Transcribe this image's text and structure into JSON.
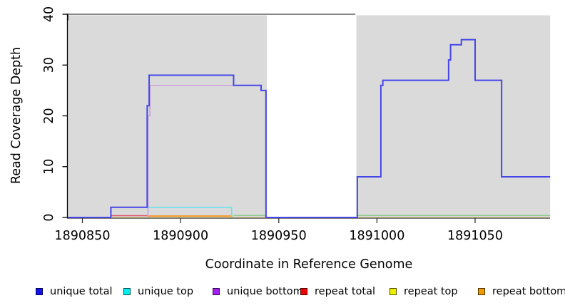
{
  "chart_data": {
    "type": "line",
    "title": "",
    "xlabel": "Coordinate in Reference Genome",
    "ylabel": "Read Coverage Depth",
    "xlim": [
      1890842.7,
      1891088.2
    ],
    "ylim": [
      0,
      40
    ],
    "x_ticks": [
      1890850,
      1890900,
      1890950,
      1891000,
      1891050
    ],
    "y_ticks": [
      0,
      10,
      20,
      30,
      40
    ],
    "grid": false,
    "legend_position": "bottom",
    "plot_bg": "#ffffff",
    "background_regions": [
      {
        "name": "shaded-region-left",
        "x_from": 1890842.7,
        "x_to": 1890944,
        "color": "#dadada"
      },
      {
        "name": "shaded-region-right",
        "x_from": 1890989.5,
        "x_to": 1891088.2,
        "color": "#dadada"
      }
    ],
    "clipped_top_line": {
      "name": "clipped-at-ymax-line",
      "color": "#5e5e5e",
      "width": 1.6,
      "points": [
        [
          1890842.7,
          38.8
        ],
        [
          1890842.7,
          40
        ],
        [
          1890989,
          40
        ]
      ]
    },
    "series": [
      {
        "name": "repeat top",
        "color": "#d8c98b",
        "width": 1.2,
        "dy": 0,
        "segments": [
          [
            [
              1890842.7,
              0
            ],
            [
              1891088.2,
              0
            ]
          ]
        ]
      },
      {
        "name": "repeat total",
        "color": "#dd5566",
        "width": 1.5,
        "dy": -2.5,
        "segments": [
          [
            [
              1890864.5,
              0
            ],
            [
              1890883,
              0
            ]
          ]
        ]
      },
      {
        "name": "repeat bottom",
        "color": "#fb9117",
        "width": 1.8,
        "dy": -2,
        "segments": [
          [
            [
              1890883,
              0
            ],
            [
              1890926.5,
              0
            ]
          ]
        ]
      },
      {
        "name": "zero baseline",
        "color": "#8ccb8c",
        "width": 1.5,
        "dy": -2.8,
        "segments": [
          [
            [
              1890927,
              0
            ],
            [
              1890943.5,
              0
            ]
          ],
          [
            [
              1890989.5,
              0
            ],
            [
              1891088.2,
              0
            ]
          ]
        ]
      },
      {
        "name": "unique top",
        "color": "#5fe5ee",
        "width": 1.6,
        "dy": 0,
        "segments": [
          [
            [
              1890883,
              2
            ],
            [
              1890926,
              2
            ],
            [
              1890926,
              0
            ]
          ]
        ]
      },
      {
        "name": "unique bottom",
        "color": "#c9a0dc",
        "width": 1.6,
        "dy": 0,
        "segments": [
          [
            [
              1890883.4,
              0
            ],
            [
              1890883.4,
              20
            ],
            [
              1890884.4,
              20
            ],
            [
              1890884.4,
              26
            ],
            [
              1890927,
              26
            ]
          ]
        ]
      },
      {
        "name": "unique total",
        "color": "#4646e8",
        "width": 2,
        "dy": 0,
        "segments": [
          [
            [
              1890842.7,
              0
            ],
            [
              1890864.5,
              0
            ],
            [
              1890864.5,
              2
            ],
            [
              1890883,
              2
            ],
            [
              1890883,
              22
            ],
            [
              1890884,
              22
            ],
            [
              1890884,
              28
            ],
            [
              1890927,
              28
            ],
            [
              1890927,
              26
            ],
            [
              1890941,
              26
            ],
            [
              1890941,
              25
            ],
            [
              1890943.5,
              25
            ],
            [
              1890943.5,
              0
            ],
            [
              1890990,
              0
            ],
            [
              1890990,
              8
            ],
            [
              1891002,
              8
            ],
            [
              1891002,
              26
            ],
            [
              1891003,
              26
            ],
            [
              1891003,
              27
            ],
            [
              1891036.5,
              27
            ],
            [
              1891036.5,
              31
            ],
            [
              1891037.5,
              31
            ],
            [
              1891037.5,
              34
            ],
            [
              1891043,
              34
            ],
            [
              1891043,
              35
            ],
            [
              1891050,
              35
            ],
            [
              1891050,
              27
            ],
            [
              1891063.5,
              27
            ],
            [
              1891063.5,
              8
            ],
            [
              1891088.2,
              8
            ]
          ]
        ]
      }
    ]
  },
  "legend": {
    "items": [
      {
        "label": "unique total",
        "color": "#1111ee"
      },
      {
        "label": "unique top",
        "color": "#00eeee"
      },
      {
        "label": "unique bottom",
        "color": "#a020f0"
      },
      {
        "label": "repeat total",
        "color": "#ee0000"
      },
      {
        "label": "repeat top",
        "color": "#eeee00"
      },
      {
        "label": "repeat bottom",
        "color": "#ee9900"
      }
    ]
  }
}
